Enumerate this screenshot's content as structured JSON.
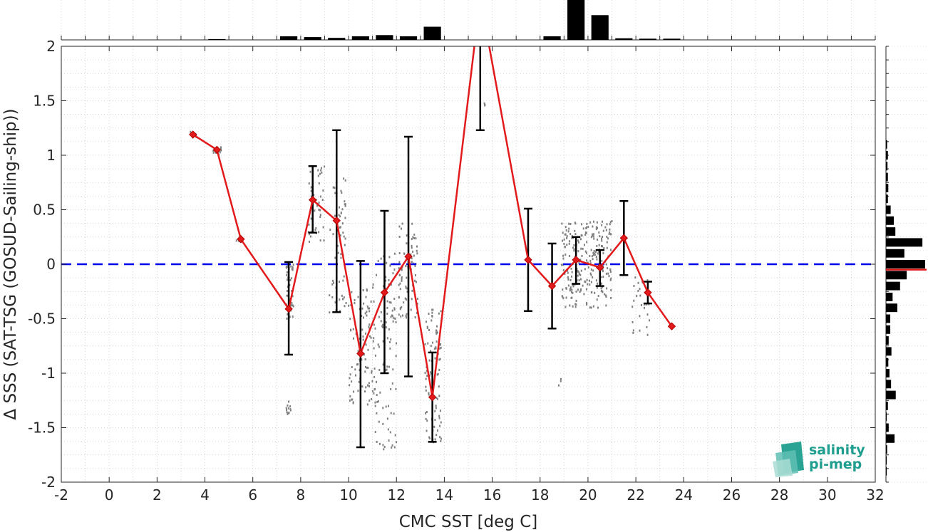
{
  "chart_data": {
    "type": "scatter",
    "xlabel": "CMC SST [deg C]",
    "ylabel": "Δ SSS (SAT-TSG (GOSUD-Sailing-ship))",
    "xlim": [
      -2,
      32
    ],
    "ylim": [
      -2,
      2
    ],
    "x_ticks": [
      -2,
      0,
      2,
      4,
      6,
      8,
      10,
      12,
      14,
      16,
      18,
      20,
      22,
      24,
      26,
      28,
      30,
      32
    ],
    "y_ticks": [
      -2,
      -1.5,
      -1,
      -0.5,
      0,
      0.5,
      1,
      1.5,
      2
    ],
    "grid": "dotted",
    "reference_line": {
      "y": 0,
      "color": "#0000ee",
      "style": "dashed"
    },
    "series": [
      {
        "type": "line",
        "color": "#e31a1c",
        "marker": "diamond",
        "x": [
          3.5,
          4.5,
          5.5,
          7.5,
          8.5,
          9.5,
          10.5,
          11.5,
          12.5,
          13.5,
          15.5,
          17.5,
          18.5,
          19.5,
          20.5,
          21.5,
          22.5,
          23.5
        ],
        "y": [
          1.19,
          1.05,
          0.23,
          -0.41,
          0.59,
          0.4,
          -0.82,
          -0.26,
          0.07,
          -1.22,
          2.45,
          0.04,
          -0.2,
          0.04,
          -0.03,
          0.24,
          -0.26,
          -0.57
        ],
        "err_low": [
          null,
          null,
          null,
          -0.83,
          0.29,
          -0.44,
          -1.68,
          -1.0,
          -1.03,
          -1.63,
          1.23,
          -0.43,
          -0.59,
          -0.18,
          -0.2,
          -0.1,
          -0.36,
          null
        ],
        "err_high": [
          null,
          null,
          null,
          0.02,
          0.9,
          1.23,
          0.03,
          0.49,
          1.17,
          -0.81,
          3.5,
          0.51,
          0.19,
          0.25,
          0.13,
          0.58,
          -0.16,
          null
        ]
      }
    ],
    "scatter_clusters": [
      {
        "x": [
          3.4,
          3.7
        ],
        "y": [
          1.15,
          1.22
        ],
        "n": 8
      },
      {
        "x": [
          4.3,
          4.7
        ],
        "y": [
          1.0,
          1.08
        ],
        "n": 12
      },
      {
        "x": [
          5.3,
          5.6
        ],
        "y": [
          0.2,
          0.26
        ],
        "n": 6
      },
      {
        "x": [
          7.3,
          7.6
        ],
        "y": [
          -1.4,
          -1.25
        ],
        "n": 12
      },
      {
        "x": [
          7.4,
          7.7
        ],
        "y": [
          -0.5,
          0.02
        ],
        "n": 40
      },
      {
        "x": [
          8.3,
          9.0
        ],
        "y": [
          0.2,
          0.9
        ],
        "n": 45
      },
      {
        "x": [
          9.2,
          9.9
        ],
        "y": [
          -0.45,
          0.8
        ],
        "n": 60
      },
      {
        "x": [
          10.0,
          11.0
        ],
        "y": [
          -1.3,
          -0.2
        ],
        "n": 90
      },
      {
        "x": [
          11.0,
          12.0
        ],
        "y": [
          -1.7,
          0.1
        ],
        "n": 110
      },
      {
        "x": [
          12.1,
          12.9
        ],
        "y": [
          -0.5,
          0.4
        ],
        "n": 80
      },
      {
        "x": [
          13.2,
          13.9
        ],
        "y": [
          -1.65,
          -0.4
        ],
        "n": 90
      },
      {
        "x": [
          15.6,
          15.7
        ],
        "y": [
          1.45,
          1.5
        ],
        "n": 3
      },
      {
        "x": [
          18.9,
          21.0
        ],
        "y": [
          -0.4,
          0.4
        ],
        "n": 260
      },
      {
        "x": [
          18.7,
          18.9
        ],
        "y": [
          -1.12,
          -1.05
        ],
        "n": 3
      },
      {
        "x": [
          21.8,
          22.6
        ],
        "y": [
          -0.65,
          -0.1
        ],
        "n": 30
      }
    ],
    "top_histogram": {
      "bins": [
        4.5,
        7.5,
        8.5,
        9.5,
        10.5,
        11.5,
        12.5,
        13.5,
        18.5,
        19.5,
        20.5,
        21.5,
        22.5,
        23.5
      ],
      "values": [
        0.02,
        0.09,
        0.07,
        0.05,
        0.09,
        0.12,
        0.09,
        0.33,
        0.09,
        1.0,
        0.62,
        0.04,
        0.03,
        0.03
      ]
    },
    "right_histogram": {
      "bins": [
        1.1,
        1.0,
        0.9,
        0.8,
        0.7,
        0.6,
        0.5,
        0.4,
        0.3,
        0.2,
        0.1,
        0.0,
        -0.1,
        -0.2,
        -0.3,
        -0.4,
        -0.5,
        -0.6,
        -0.7,
        -0.8,
        -0.9,
        -1.0,
        -1.1,
        -1.2,
        -1.3,
        -1.4,
        -1.5,
        -1.6,
        -1.7,
        -1.8,
        -1.9
      ],
      "values": [
        0.03,
        0.05,
        0.04,
        0.05,
        0.06,
        0.05,
        0.12,
        0.2,
        0.24,
        0.93,
        0.47,
        1.0,
        0.53,
        0.36,
        0.17,
        0.29,
        0.11,
        0.11,
        0.07,
        0.14,
        0.06,
        0.09,
        0.13,
        0.25,
        0.05,
        0.02,
        0.07,
        0.22,
        0.03,
        0.02,
        0.02
      ],
      "mean_marker": {
        "y": -0.05,
        "color": "#e31a1c"
      }
    },
    "logo": "salinity pi-mep"
  }
}
